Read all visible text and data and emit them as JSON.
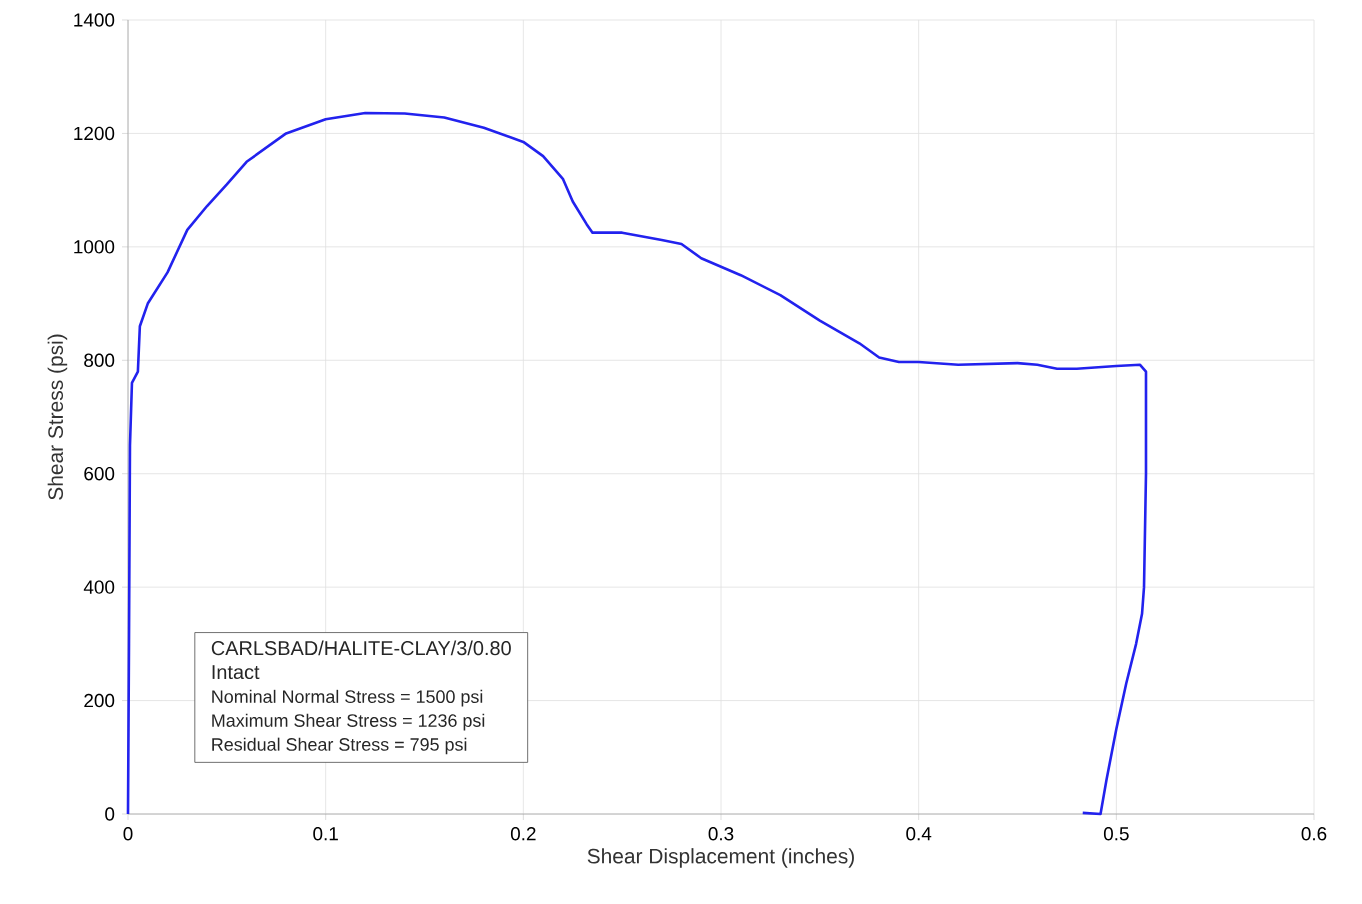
{
  "chart_data": {
    "type": "line",
    "xlabel": "Shear Displacement (inches)",
    "ylabel": "Shear Stress (psi)",
    "x": [
      0,
      0.0005,
      0.001,
      0.002,
      0.005,
      0.006,
      0.01,
      0.02,
      0.03,
      0.04,
      0.05,
      0.06,
      0.07,
      0.08,
      0.1,
      0.12,
      0.14,
      0.16,
      0.18,
      0.2,
      0.21,
      0.22,
      0.225,
      0.232,
      0.235,
      0.25,
      0.27,
      0.28,
      0.29,
      0.31,
      0.33,
      0.35,
      0.37,
      0.38,
      0.39,
      0.4,
      0.42,
      0.45,
      0.46,
      0.47,
      0.48,
      0.5,
      0.512,
      0.515,
      0.515,
      0.514,
      0.513,
      0.51,
      0.505,
      0.5,
      0.495,
      0.492,
      0.483
    ],
    "series": [
      {
        "color": "#2222ee",
        "values": [
          0,
          300,
          650,
          760,
          780,
          860,
          900,
          955,
          1030,
          1072,
          1110,
          1150,
          1175,
          1200,
          1225,
          1236,
          1235,
          1228,
          1210,
          1185,
          1160,
          1120,
          1080,
          1040,
          1025,
          1025,
          1012,
          1005,
          980,
          950,
          915,
          870,
          830,
          805,
          797,
          797,
          792,
          795,
          792,
          785,
          785,
          790,
          792,
          780,
          600,
          400,
          353,
          300,
          230,
          150,
          60,
          0,
          2
        ]
      }
    ],
    "xlim": [
      0,
      0.6
    ],
    "ylim": [
      0,
      1400
    ],
    "xticks": [
      0,
      0.1,
      0.2,
      0.3,
      0.4,
      0.5,
      0.6
    ],
    "yticks": [
      0,
      200,
      400,
      600,
      800,
      1000,
      1200,
      1400
    ],
    "grid": true,
    "annotations": [
      "CARLSBAD/HALITE-CLAY/3/0.80",
      "Intact",
      "Nominal Normal Stress = 1500 psi",
      "Maximum Shear Stress = 1236 psi",
      "Residual Shear Stress = 795 psi"
    ]
  }
}
